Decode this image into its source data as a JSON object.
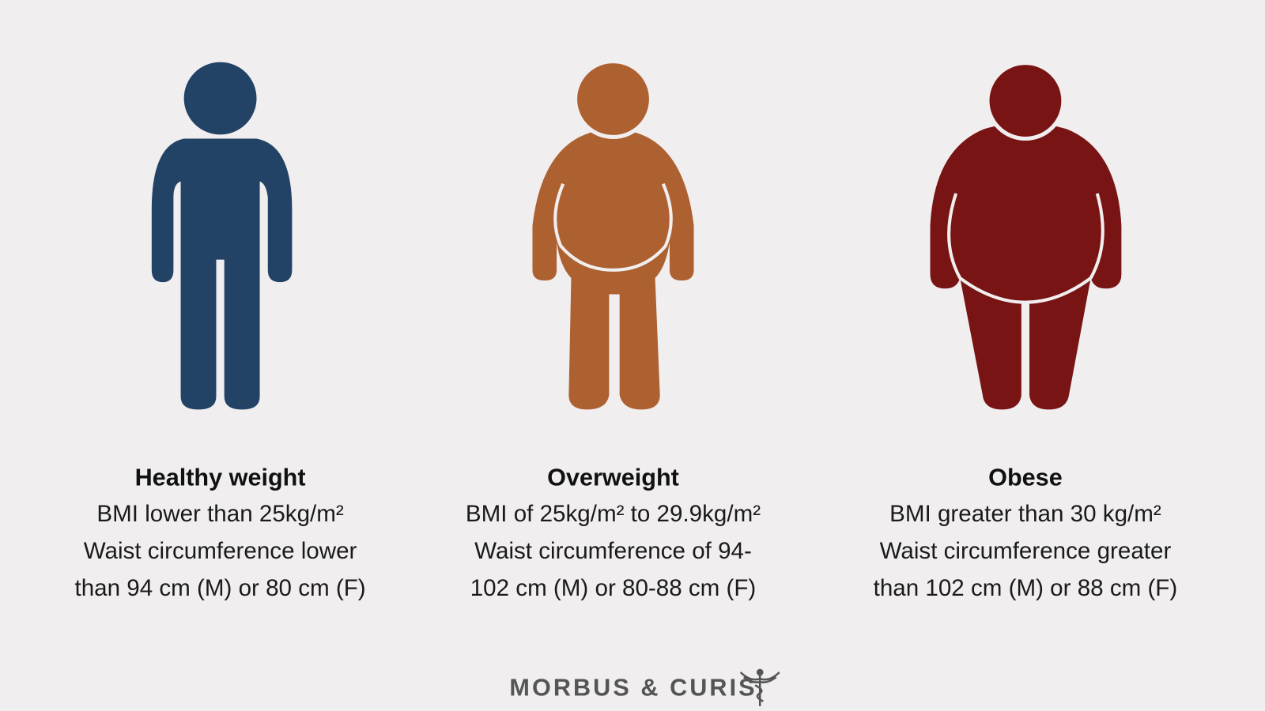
{
  "panels": [
    {
      "title": "Healthy weight",
      "lines": [
        "BMI lower than 25kg/m²",
        "Waist circumference lower",
        "than 94 cm (M) or 80 cm (F)"
      ]
    },
    {
      "title": "Overweight",
      "lines": [
        "BMI of 25kg/m² to 29.9kg/m²",
        "Waist circumference of 94-",
        "102 cm (M) or 80-88 cm (F)"
      ]
    },
    {
      "title": "Obese",
      "lines": [
        "BMI greater than 30 kg/m²",
        "Waist circumference greater",
        "than 102 cm (M) or 88 cm (F)"
      ]
    }
  ],
  "footer": {
    "brand": "MORBUS & CURIS"
  }
}
